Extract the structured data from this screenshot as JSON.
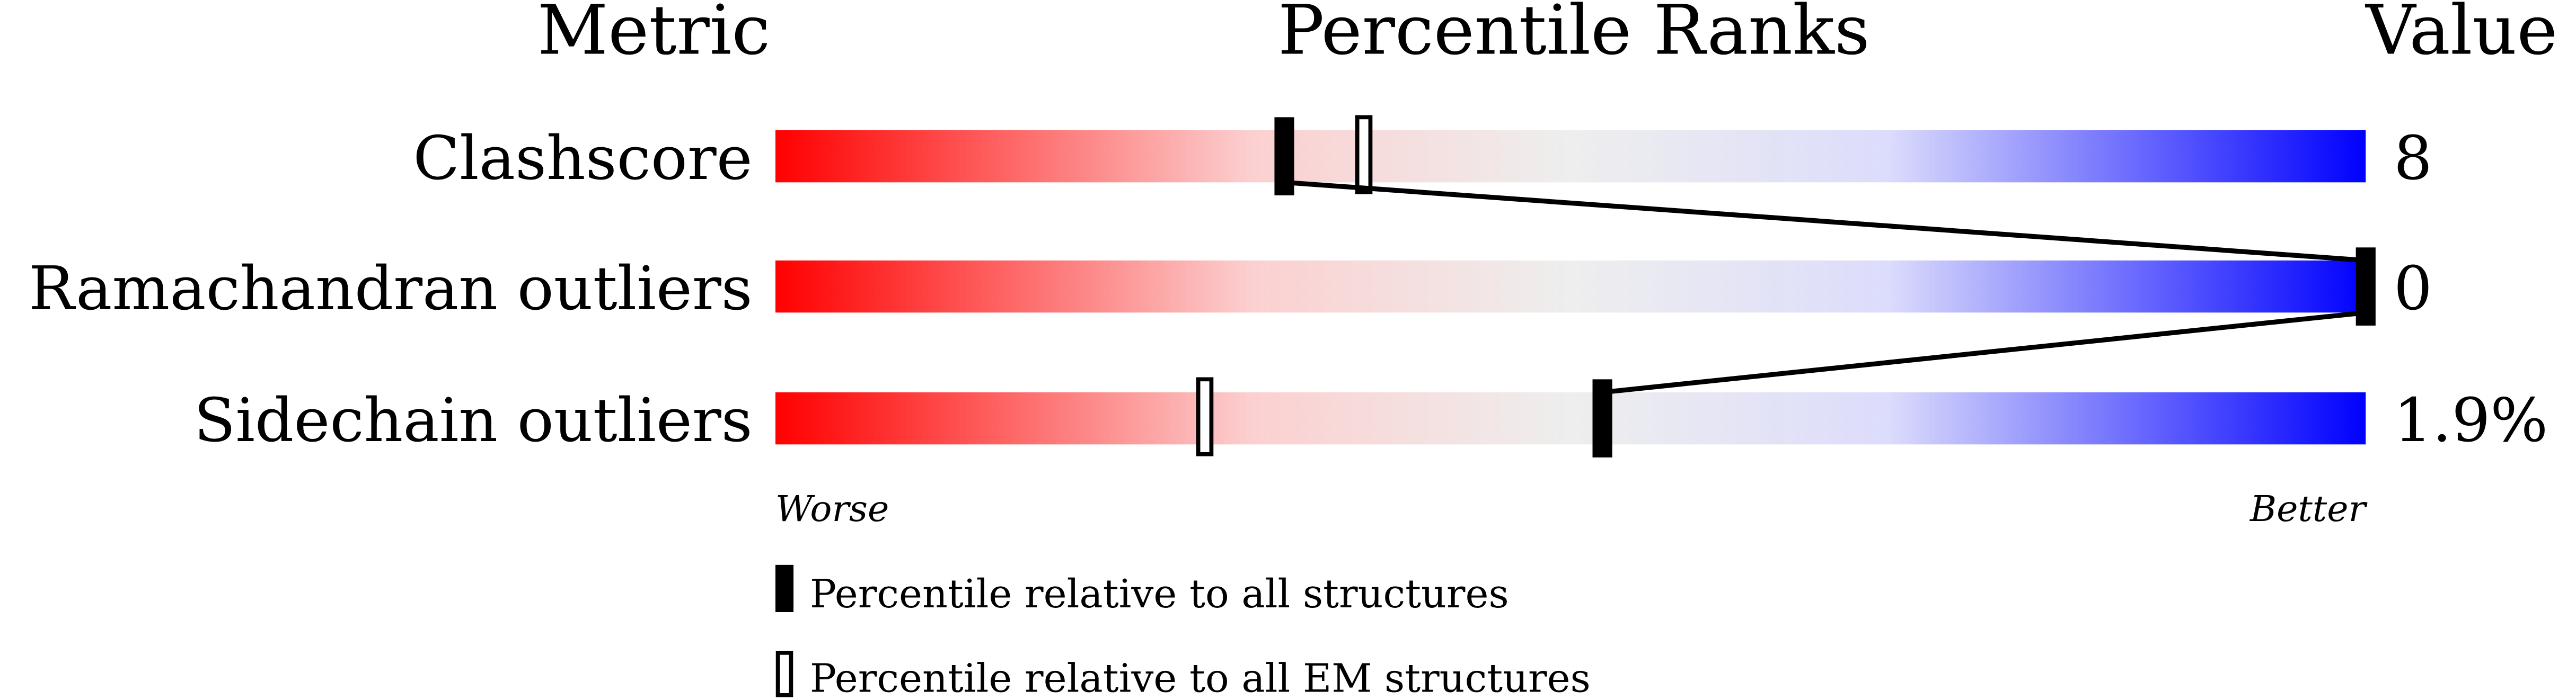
{
  "chart_data": {
    "type": "bar",
    "headers": {
      "metric": "Metric",
      "ranks": "Percentile Ranks",
      "value": "Value"
    },
    "xlim": [
      0,
      100
    ],
    "metrics": [
      {
        "label": "Clashscore",
        "value": "8",
        "percentile_all": 32,
        "percentile_em": 37
      },
      {
        "label": "Ramachandran outliers",
        "value": "0",
        "percentile_all": 100,
        "percentile_em": 100
      },
      {
        "label": "Sidechain outliers",
        "value": "1.9%",
        "percentile_all": 52,
        "percentile_em": 27
      }
    ],
    "axis": {
      "worse": "Worse",
      "better": "Better"
    },
    "legend": {
      "all": "Percentile relative to all structures",
      "em": "Percentile relative to all EM structures"
    },
    "colors": {
      "worse": "#ff0000",
      "mid_red": "#fcd0d0",
      "neutral": "#eeeeee",
      "mid_blue": "#dcdcfc",
      "better": "#0000ff"
    }
  }
}
